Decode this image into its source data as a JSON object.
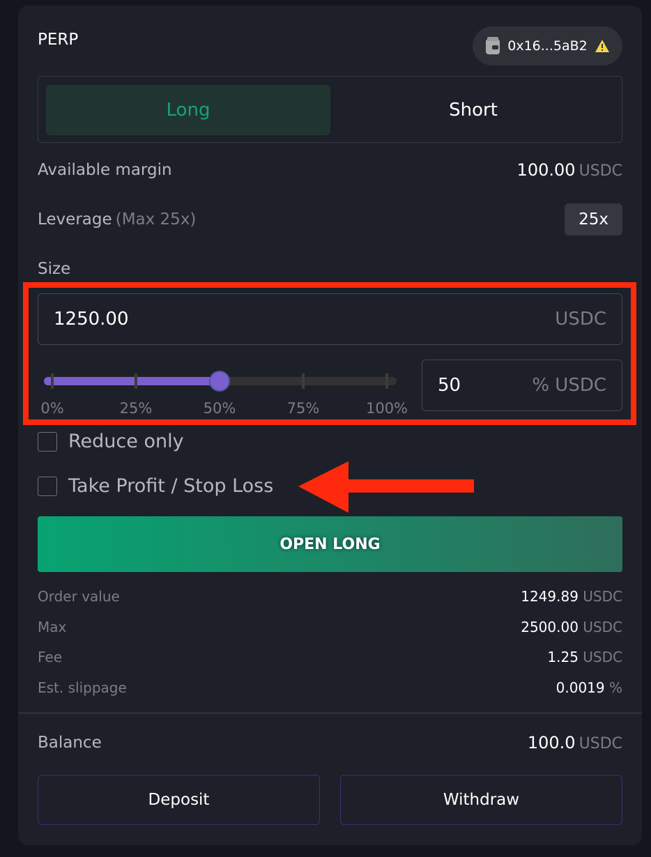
{
  "header": {
    "title": "PERP",
    "wallet_address": "0x16...5aB2",
    "wallet_icon": "wallet-icon",
    "warning_icon": "warning-icon"
  },
  "side_tabs": [
    {
      "label": "Long",
      "active": true
    },
    {
      "label": "Short",
      "active": false
    }
  ],
  "available_margin": {
    "label": "Available margin",
    "value": "100.00",
    "unit": "USDC"
  },
  "leverage": {
    "label": "Leverage",
    "hint": "(Max 25x)",
    "value": "25x"
  },
  "size": {
    "label": "Size",
    "value": "1250.00",
    "unit": "USDC",
    "percent_value": "50",
    "percent_unit": "% USDC",
    "slider_percent": 50,
    "slider_ticks": [
      "0%",
      "25%",
      "50%",
      "75%",
      "100%"
    ]
  },
  "options": {
    "reduce_only": {
      "label": "Reduce only",
      "checked": false
    },
    "tpsl": {
      "label": "Take Profit / Stop Loss",
      "checked": false
    }
  },
  "submit_label": "OPEN LONG",
  "summary": [
    {
      "label": "Order value",
      "value": "1249.89",
      "unit": "USDC"
    },
    {
      "label": "Max",
      "value": "2500.00",
      "unit": "USDC"
    },
    {
      "label": "Fee",
      "value": "1.25",
      "unit": "USDC"
    },
    {
      "label": "Est. slippage",
      "value": "0.0019",
      "unit": "%"
    }
  ],
  "balance": {
    "label": "Balance",
    "value": "100.0",
    "unit": "USDC"
  },
  "actions": {
    "deposit": "Deposit",
    "withdraw": "Withdraw"
  },
  "colors": {
    "long": "#15a27a",
    "slider": "#7c5fcf",
    "highlight": "#ff2a0e"
  }
}
